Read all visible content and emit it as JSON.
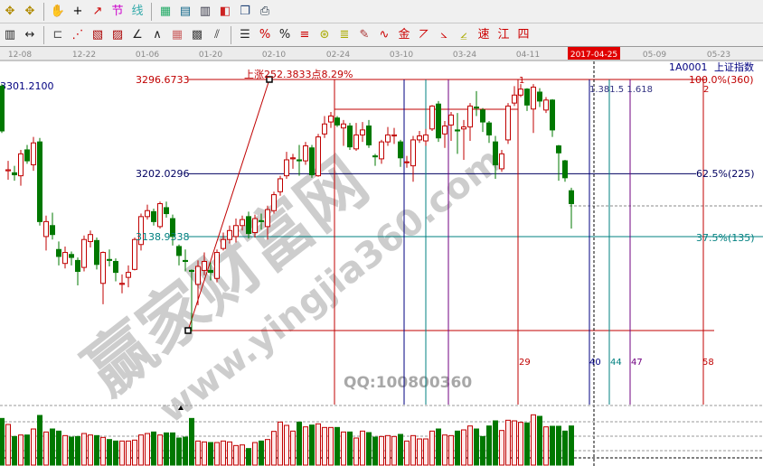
{
  "toolbar": {
    "row1": [
      {
        "name": "zoom-in-icon",
        "g": "✥",
        "c": "#b08a00"
      },
      {
        "name": "zoom-out-icon",
        "g": "✥",
        "c": "#b08a00"
      },
      {
        "sep": true
      },
      {
        "name": "hand-icon",
        "g": "✋",
        "c": "#333"
      },
      {
        "name": "crosshair-icon",
        "g": "+",
        "c": "#000"
      },
      {
        "name": "line-draw-icon",
        "g": "↗",
        "c": "#c00"
      },
      {
        "name": "node-icon",
        "g": "节",
        "c": "#c0c"
      },
      {
        "name": "line-icon",
        "g": "线",
        "c": "#3aa"
      },
      {
        "sep": true
      },
      {
        "name": "calendar-icon",
        "g": "▦",
        "c": "#2a6"
      },
      {
        "name": "calculator-icon",
        "g": "▤",
        "c": "#168"
      },
      {
        "name": "notes-icon",
        "g": "▥",
        "c": "#334"
      },
      {
        "name": "save-icon",
        "g": "◧",
        "c": "#c22"
      },
      {
        "name": "window-icon",
        "g": "❐",
        "c": "#247"
      },
      {
        "name": "print-icon",
        "g": "⎙",
        "c": "#234"
      }
    ],
    "row2": [
      {
        "name": "ruler-icon",
        "g": "▥",
        "c": "#222"
      },
      {
        "name": "width-icon",
        "g": "↔",
        "c": "#222"
      },
      {
        "sep": true
      },
      {
        "name": "rect-icon",
        "g": "⊏",
        "c": "#555"
      },
      {
        "name": "fan-icon",
        "g": "⋰",
        "c": "#c00"
      },
      {
        "name": "box-icon",
        "g": "▧",
        "c": "#a00"
      },
      {
        "name": "gann-box-icon",
        "g": "▨",
        "c": "#a00"
      },
      {
        "name": "angle-icon",
        "g": "∠",
        "c": "#222"
      },
      {
        "name": "zigzag-icon",
        "g": "∧",
        "c": "#222"
      },
      {
        "name": "grid-icon",
        "g": "▦",
        "c": "#c66"
      },
      {
        "name": "grid2-icon",
        "g": "▩",
        "c": "#444"
      },
      {
        "name": "parallel-icon",
        "g": "⫽",
        "c": "#333"
      },
      {
        "sep": true
      },
      {
        "name": "fib-icon",
        "g": "☰",
        "c": "#222"
      },
      {
        "name": "percent-line-icon",
        "g": "%",
        "c": "#c00"
      },
      {
        "name": "percent-icon",
        "g": "%",
        "c": "#222"
      },
      {
        "name": "percent-lines-icon",
        "g": "≡",
        "c": "#c00"
      },
      {
        "name": "gold-circle-icon",
        "g": "⊛",
        "c": "#aa0"
      },
      {
        "name": "gold-lines-icon",
        "g": "≣",
        "c": "#aa0"
      },
      {
        "name": "pen-icon",
        "g": "✎",
        "c": "#a33"
      },
      {
        "name": "wave-icon",
        "g": "∿",
        "c": "#c00"
      },
      {
        "name": "gold-icon",
        "g": "金",
        "c": "#c00"
      },
      {
        "name": "j-fan-icon",
        "g": "⦢",
        "c": "#c00"
      },
      {
        "name": "f-fan-icon",
        "g": "⦣",
        "c": "#c00"
      },
      {
        "name": "gold-fan-icon",
        "g": "⦤",
        "c": "#aa0"
      },
      {
        "name": "speed-fan-icon",
        "g": "速",
        "c": "#c00"
      },
      {
        "name": "gann-fan-icon",
        "g": "江",
        "c": "#c00"
      },
      {
        "name": "quad-fan-icon",
        "g": "四",
        "c": "#c00"
      }
    ]
  },
  "dates": [
    "12-08",
    "12-22",
    "01-06",
    "01-20",
    "02-10",
    "02-24",
    "03-10",
    "03-24",
    "04-11",
    "2017-04-25",
    "05-09",
    "05-23"
  ],
  "header": {
    "code": "1A0001",
    "name": "上证指数",
    "max_price": "3301.2100"
  },
  "annotations": {
    "rise_text": "上涨252.3833点8.29%",
    "p_high": "3296.6733",
    "p_mid": "3202.0296",
    "p_low": "3138.9338",
    "pct100": "100.0%(360)",
    "pct625": "62.5%(225)",
    "pct375": "37.5%(135)",
    "cycle_1": "1",
    "cycle_2": "2",
    "ratios": "1.381.5 1.618",
    "cycle_counts": [
      "29",
      "40",
      "44",
      "47",
      "58"
    ]
  },
  "watermark": {
    "cn": "赢家财富网",
    "url": "www.yingjia360.com",
    "qq": "QQ:100800360"
  },
  "colors": {
    "up": "#c00000",
    "down": "#007800",
    "navy": "#000070",
    "teal": "#008080",
    "purple": "#700080"
  },
  "chart_data": {
    "type": "candlestick",
    "title": "上证指数",
    "x_ticks": [
      "12-08",
      "12-22",
      "01-06",
      "01-20",
      "02-10",
      "02-24",
      "03-10",
      "03-24",
      "04-11",
      "2017-04-25",
      "05-09",
      "05-23"
    ],
    "fields": [
      "open",
      "close",
      "high",
      "low"
    ],
    "candles": [
      [
        3290,
        3245,
        3292,
        3243
      ],
      [
        3205,
        3206,
        3215,
        3196
      ],
      [
        3203,
        3201,
        3210,
        3195
      ],
      [
        3200,
        3222,
        3226,
        3190
      ],
      [
        3226,
        3215,
        3231,
        3212
      ],
      [
        3211,
        3233,
        3239,
        3205
      ],
      [
        3234,
        3154,
        3238,
        3150
      ],
      [
        3139,
        3154,
        3160,
        3125
      ],
      [
        3150,
        3141,
        3163,
        3136
      ],
      [
        3126,
        3119,
        3134,
        3110
      ],
      [
        3112,
        3123,
        3129,
        3107
      ],
      [
        3121,
        3118,
        3124,
        3110
      ],
      [
        3115,
        3104,
        3118,
        3090
      ],
      [
        3108,
        3136,
        3140,
        3104
      ],
      [
        3134,
        3141,
        3145,
        3128
      ],
      [
        3135,
        3111,
        3138,
        3106
      ],
      [
        3092,
        3123,
        3124,
        3071
      ],
      [
        3116,
        3115,
        3126,
        3109
      ],
      [
        3114,
        3103,
        3117,
        3094
      ],
      [
        3091,
        3092,
        3101,
        3082
      ],
      [
        3098,
        3103,
        3110,
        3088
      ],
      [
        3106,
        3136,
        3138,
        3105
      ],
      [
        3131,
        3159,
        3162,
        3125
      ],
      [
        3159,
        3165,
        3171,
        3156
      ],
      [
        3164,
        3154,
        3167,
        3150
      ],
      [
        3149,
        3172,
        3174,
        3147
      ],
      [
        3168,
        3162,
        3174,
        3158
      ],
      [
        3157,
        3139,
        3161,
        3130
      ],
      [
        3129,
        3120,
        3131,
        3110
      ],
      [
        3115,
        3114,
        3126,
        3104
      ],
      [
        3105,
        3104,
        3106,
        3044
      ],
      [
        3091,
        3109,
        3115,
        3070
      ],
      [
        3105,
        3114,
        3123,
        3100
      ],
      [
        3105,
        3103,
        3113,
        3095
      ],
      [
        3097,
        3123,
        3126,
        3093
      ],
      [
        3127,
        3136,
        3143,
        3125
      ],
      [
        3136,
        3145,
        3150,
        3132
      ],
      [
        3139,
        3150,
        3157,
        3133
      ],
      [
        3150,
        3156,
        3160,
        3145
      ],
      [
        3159,
        3142,
        3164,
        3137
      ],
      [
        3143,
        3157,
        3161,
        3138
      ],
      [
        3155,
        3154,
        3162,
        3146
      ],
      [
        3149,
        3166,
        3170,
        3136
      ],
      [
        3165,
        3181,
        3184,
        3162
      ],
      [
        3184,
        3197,
        3200,
        3180
      ],
      [
        3200,
        3216,
        3224,
        3197
      ],
      [
        3217,
        3218,
        3222,
        3207
      ],
      [
        3216,
        3215,
        3231,
        3200
      ],
      [
        3215,
        3230,
        3234,
        3211
      ],
      [
        3228,
        3201,
        3231,
        3198
      ],
      [
        3200,
        3239,
        3242,
        3199
      ],
      [
        3242,
        3252,
        3260,
        3238
      ],
      [
        3254,
        3260,
        3264,
        3248
      ],
      [
        3258,
        3251,
        3260,
        3249
      ],
      [
        3248,
        3252,
        3256,
        3230
      ],
      [
        3250,
        3229,
        3253,
        3226
      ],
      [
        3227,
        3241,
        3253,
        3225
      ],
      [
        3241,
        3246,
        3254,
        3234
      ],
      [
        3250,
        3231,
        3256,
        3228
      ],
      [
        3220,
        3219,
        3222,
        3210
      ],
      [
        3217,
        3234,
        3236,
        3212
      ],
      [
        3234,
        3241,
        3249,
        3230
      ],
      [
        3240,
        3241,
        3248,
        3232
      ],
      [
        3234,
        3218,
        3236,
        3209
      ],
      [
        3214,
        3214,
        3220,
        3208
      ],
      [
        3210,
        3236,
        3240,
        3194
      ],
      [
        3236,
        3240,
        3245,
        3233
      ],
      [
        3235,
        3241,
        3247,
        3230
      ],
      [
        3247,
        3270,
        3271,
        3245
      ],
      [
        3272,
        3238,
        3275,
        3234
      ],
      [
        3242,
        3250,
        3255,
        3228
      ],
      [
        3251,
        3261,
        3264,
        3235
      ],
      [
        3246,
        3245,
        3263,
        3222
      ],
      [
        3247,
        3249,
        3256,
        3216
      ],
      [
        3249,
        3270,
        3273,
        3235
      ],
      [
        3269,
        3268,
        3285,
        3260
      ],
      [
        3266,
        3254,
        3268,
        3244
      ],
      [
        3253,
        3241,
        3255,
        3233
      ],
      [
        3234,
        3211,
        3240,
        3197
      ],
      [
        3207,
        3222,
        3226,
        3204
      ],
      [
        3236,
        3270,
        3273,
        3232
      ],
      [
        3273,
        3281,
        3290,
        3270
      ],
      [
        3281,
        3287,
        3292,
        3279
      ],
      [
        3287,
        3271,
        3288,
        3265
      ],
      [
        3267,
        3289,
        3292,
        3243
      ],
      [
        3284,
        3275,
        3288,
        3269
      ],
      [
        3266,
        3276,
        3279,
        3263
      ],
      [
        3276,
        3246,
        3277,
        3239
      ],
      [
        3230,
        3223,
        3231,
        3195
      ],
      [
        3215,
        3198,
        3216,
        3194
      ],
      [
        3185,
        3172,
        3188,
        3147
      ]
    ],
    "volume_relative": [
      155,
      135,
      95,
      100,
      100,
      120,
      165,
      110,
      120,
      113,
      98,
      93,
      95,
      105,
      100,
      98,
      92,
      85,
      80,
      80,
      80,
      83,
      100,
      105,
      110,
      100,
      107,
      107,
      90,
      93,
      155,
      80,
      77,
      75,
      75,
      80,
      77,
      65,
      67,
      55,
      75,
      80,
      85,
      112,
      143,
      132,
      113,
      143,
      127,
      133,
      137,
      125,
      125,
      125,
      110,
      110,
      90,
      113,
      108,
      93,
      95,
      98,
      95,
      102,
      80,
      98,
      87,
      87,
      113,
      120,
      100,
      98,
      113,
      117,
      130,
      120,
      95,
      130,
      147,
      115,
      149,
      147,
      142,
      140,
      167,
      162,
      127,
      129,
      129,
      113,
      130
    ],
    "levels": [
      {
        "price": 3296.6733,
        "label": "100.0%(360)"
      },
      {
        "price": 3202.0296,
        "label": "62.5%(225)"
      },
      {
        "price": 3138.9338,
        "label": "37.5%(135)"
      }
    ],
    "swing": {
      "low": 3044.29,
      "high": 3296.6733,
      "rise": 252.3833,
      "rise_pct": 8.29
    }
  }
}
